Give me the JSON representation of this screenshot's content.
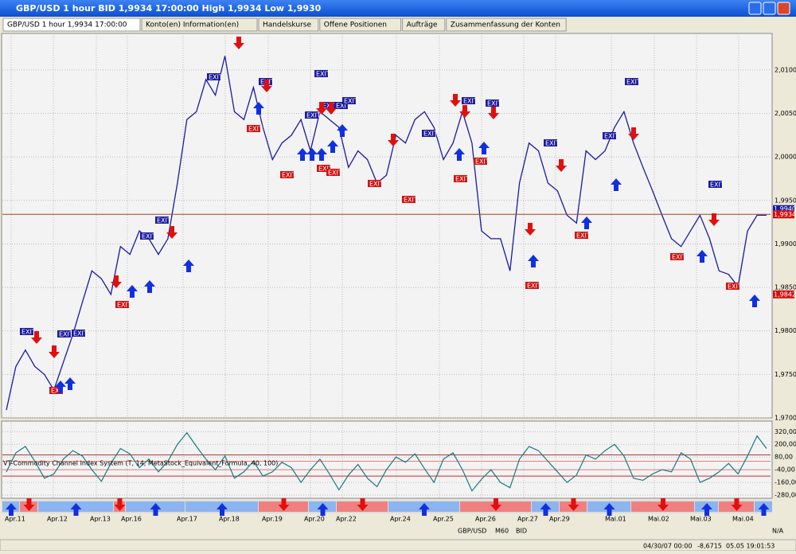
{
  "window": {
    "title": "GBP/USD 1 hour BID 1,9934 17:00:00 High 1,9934 Low 1,9930"
  },
  "tabs": [
    "GBP/USD 1 hour 1,9934 17:00:00",
    "Konto(en) Information(en)",
    "Handelskurse",
    "Offene Positionen",
    "Aufträge",
    "Zusammenfassung der Konten"
  ],
  "chart": {
    "ylim": [
      1.97,
      2.0142
    ],
    "yticks": [
      {
        "value": 1.97,
        "label": "1,9700"
      },
      {
        "value": 1.975,
        "label": "1,9750"
      },
      {
        "value": 1.98,
        "label": "1,9800"
      },
      {
        "value": 1.985,
        "label": "1,9850"
      },
      {
        "value": 1.99,
        "label": "1,9900"
      },
      {
        "value": 1.995,
        "label": "1,9950"
      },
      {
        "value": 2.0,
        "label": "2,0000"
      },
      {
        "value": 2.005,
        "label": "2,0050"
      },
      {
        "value": 2.01,
        "label": "2,0100"
      }
    ],
    "price": [
      1.9709,
      1.9759,
      1.9778,
      1.9759,
      1.975,
      1.9732,
      1.9764,
      1.9796,
      1.9833,
      1.9869,
      1.986,
      1.9842,
      1.9897,
      1.9888,
      1.9915,
      1.9906,
      1.9888,
      1.9906,
      1.997,
      2.0043,
      2.0052,
      2.0089,
      2.0071,
      2.0116,
      2.0052,
      2.0043,
      2.008,
      2.0034,
      1.9997,
      2.0016,
      2.0025,
      2.0043,
      2.0007,
      2.0052,
      2.0043,
      2.0034,
      1.9988,
      2.0007,
      1.9997,
      1.997,
      1.9979,
      2.0025,
      2.0016,
      2.0043,
      2.0052,
      2.0034,
      1.9997,
      2.0016,
      2.0052,
      2.0016,
      1.9915,
      1.9906,
      1.9906,
      1.9869,
      1.997,
      2.0016,
      2.0007,
      1.997,
      1.9961,
      1.9933,
      1.9924,
      2.0007,
      1.9997,
      2.0007,
      2.0034,
      2.0052,
      2.0016,
      1.9988,
      1.9961,
      1.9933,
      1.9906,
      1.9897,
      1.9915,
      1.9933,
      1.9906,
      1.9869,
      1.9865,
      1.9851,
      1.9915,
      1.9933,
      1.9933
    ],
    "price_labels": [
      {
        "value": 1.994,
        "label": "1,9940",
        "color": "#1a1aa0"
      },
      {
        "value": 1.9934,
        "label": "1,9934",
        "color": "#d01010"
      },
      {
        "value": 1.9842,
        "label": "1,9842",
        "color": "#d01010"
      }
    ],
    "exit_label": "EXIT",
    "dates": [
      "Apr.11",
      "Apr.12",
      "Apr.13",
      "Apr.16",
      "Apr.17",
      "Apr.18",
      "Apr.19",
      "Apr.20",
      "Apr.22",
      "Apr.24",
      "Apr.25",
      "Apr.26",
      "Apr.27",
      "Apr.29",
      "Mai.01",
      "Mai.02",
      "Mai.03",
      "Mai.04"
    ],
    "indicator": {
      "label": "VT-Commodity Channel Index System (T, 14, MetaStock_Equivalent_Formula, 40, 100)",
      "ylim": [
        -310,
        420
      ],
      "yticks": [
        {
          "value": 320,
          "label": "320,00"
        },
        {
          "value": 200,
          "label": "200,00"
        },
        {
          "value": 80,
          "label": "80,00"
        },
        {
          "value": -40,
          "label": "-40,00"
        },
        {
          "value": -160,
          "label": "-160,00"
        },
        {
          "value": -280,
          "label": "-280,00"
        }
      ],
      "levels": [
        100,
        40,
        -40,
        -100
      ],
      "values": [
        -60,
        120,
        180,
        40,
        -120,
        -80,
        60,
        140,
        90,
        -40,
        -150,
        20,
        160,
        110,
        -20,
        60,
        -60,
        40,
        200,
        310,
        180,
        60,
        -40,
        90,
        -120,
        -60,
        40,
        -100,
        -60,
        30,
        -20,
        -160,
        -40,
        60,
        -80,
        -230,
        -90,
        10,
        -120,
        -200,
        -40,
        80,
        30,
        110,
        -30,
        -160,
        60,
        120,
        -40,
        -240,
        -130,
        -40,
        -160,
        -210,
        60,
        180,
        140,
        40,
        -60,
        -160,
        -90,
        100,
        60,
        140,
        200,
        90,
        -120,
        -140,
        -80,
        -40,
        -60,
        120,
        60,
        -160,
        -120,
        -60,
        20,
        -80,
        90,
        280,
        160
      ]
    }
  },
  "toolbar": {
    "symbol": "GBP/USD",
    "period": "M60",
    "side": "BID",
    "zoom": "N/A"
  },
  "status": {
    "time": "04/30/07 00:00",
    "value": "-8,6715",
    "clock": "05.05 19:01:53"
  }
}
